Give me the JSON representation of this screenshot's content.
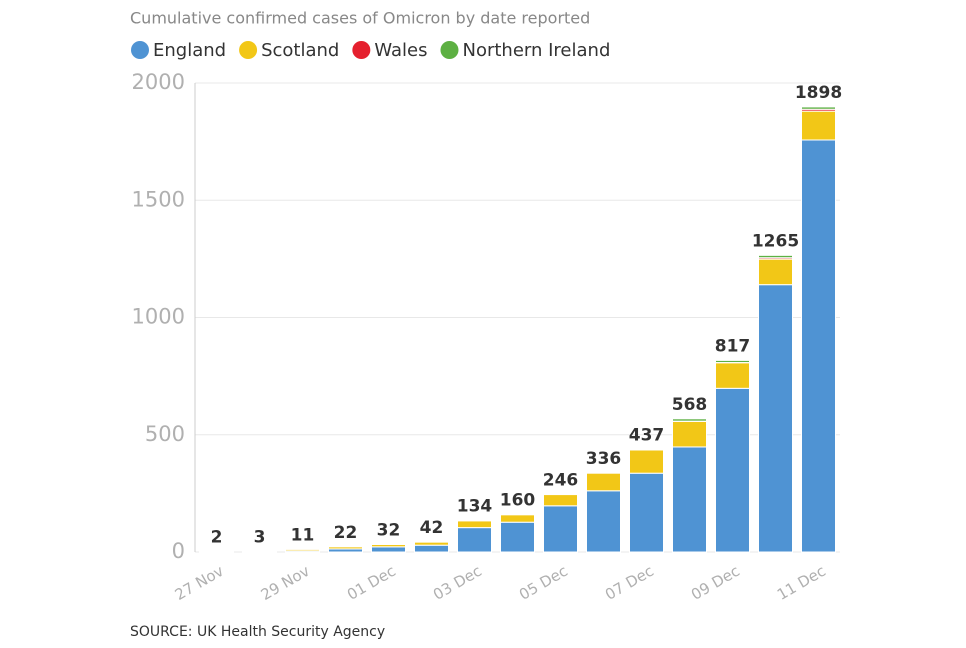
{
  "chart_data": {
    "type": "stacked-bar",
    "title": "Cumulative confirmed cases of Omicron by date reported",
    "source": "SOURCE: UK Health Security Agency",
    "categories": [
      "27 Nov",
      null,
      "29 Nov",
      null,
      "01 Dec",
      null,
      "03 Dec",
      null,
      "05 Dec",
      null,
      "07 Dec",
      null,
      "09 Dec",
      null,
      "11 Dec"
    ],
    "series": [
      {
        "name": "England",
        "color": "#4f93d3",
        "values": [
          2,
          3,
          5,
          13,
          22,
          29,
          104,
          127,
          197,
          261,
          336,
          448,
          698,
          1140,
          1757
        ]
      },
      {
        "name": "Scotland",
        "color": "#f2c717",
        "values": [
          0,
          0,
          6,
          9,
          10,
          13,
          29,
          32,
          48,
          75,
          99,
          109,
          109,
          109,
          123
        ]
      },
      {
        "name": "Wales",
        "color": "#e5202e",
        "values": [
          0,
          0,
          0,
          0,
          0,
          0,
          1,
          1,
          1,
          0,
          1,
          1,
          1,
          6,
          8
        ]
      },
      {
        "name": "Northern Ireland",
        "color": "#5db043",
        "values": [
          0,
          0,
          0,
          0,
          0,
          0,
          0,
          0,
          0,
          0,
          1,
          10,
          9,
          10,
          10
        ]
      }
    ],
    "totals": [
      2,
      3,
      11,
      22,
      32,
      42,
      134,
      160,
      246,
      336,
      437,
      568,
      817,
      1265,
      1898
    ],
    "ylim": [
      0,
      2000
    ],
    "yticks": [
      0,
      500,
      1000,
      1500,
      2000
    ],
    "grid": true
  }
}
